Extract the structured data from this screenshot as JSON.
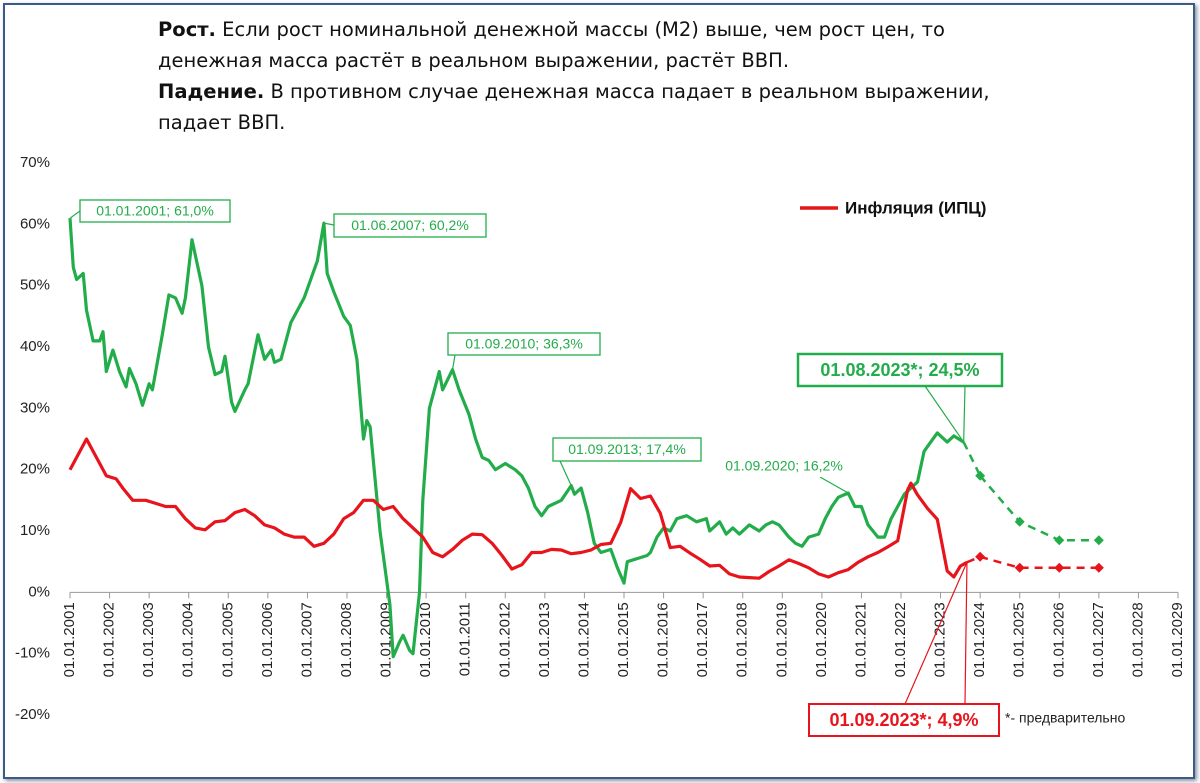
{
  "header": {
    "paragraphs": [
      {
        "bold": "Рост.",
        "lines": [
          "Если рост номинальной денежной массы (М2) выше, чем рост цен,  то",
          "денежная масса растёт в реальном выражении, растёт ВВП."
        ]
      },
      {
        "bold": "Падение.",
        "lines": [
          "В противном случае денежная масса падает в реальном выражении,",
          "падает ВВП."
        ]
      }
    ]
  },
  "chart_data": {
    "type": "line",
    "xlim": [
      "2001-01",
      "2029-01"
    ],
    "xticks": [
      {
        "value": "2001-01",
        "label": "01.01.2001"
      },
      {
        "value": "2002-01",
        "label": "01.01.2002"
      },
      {
        "value": "2003-01",
        "label": "01.01.2003"
      },
      {
        "value": "2004-01",
        "label": "01.01.2004"
      },
      {
        "value": "2005-01",
        "label": "01.01.2005"
      },
      {
        "value": "2006-01",
        "label": "01.01.2006"
      },
      {
        "value": "2007-01",
        "label": "01.01.2007"
      },
      {
        "value": "2008-01",
        "label": "01.01.2008"
      },
      {
        "value": "2009-01",
        "label": "01.01.2009"
      },
      {
        "value": "2010-01",
        "label": "01.01.2010"
      },
      {
        "value": "2011-01",
        "label": "01.01.2011"
      },
      {
        "value": "2012-01",
        "label": "01.01.2012"
      },
      {
        "value": "2013-01",
        "label": "01.01.2013"
      },
      {
        "value": "2014-01",
        "label": "01.01.2014"
      },
      {
        "value": "2015-01",
        "label": "01.01.2015"
      },
      {
        "value": "2016-01",
        "label": "01.01.2016"
      },
      {
        "value": "2017-01",
        "label": "01.01.2017"
      },
      {
        "value": "2018-01",
        "label": "01.01.2018"
      },
      {
        "value": "2019-01",
        "label": "01.01.2019"
      },
      {
        "value": "2020-01",
        "label": "01.01.2020"
      },
      {
        "value": "2021-01",
        "label": "01.01.2021"
      },
      {
        "value": "2022-01",
        "label": "01.01.2022"
      },
      {
        "value": "2023-01",
        "label": "01.01.2023"
      },
      {
        "value": "2024-01",
        "label": "01.01.2024"
      },
      {
        "value": "2025-01",
        "label": "01.01.2025"
      },
      {
        "value": "2026-01",
        "label": "01.01.2026"
      },
      {
        "value": "2027-01",
        "label": "01.01.2027"
      },
      {
        "value": "2028-01",
        "label": "01.01.2028"
      },
      {
        "value": "2029-01",
        "label": "01.01.2029"
      }
    ],
    "ylim": [
      -20,
      70
    ],
    "yticks": [
      {
        "value": -20,
        "label": "-20%"
      },
      {
        "value": -10,
        "label": "-10%"
      },
      {
        "value": 0,
        "label": "0%"
      },
      {
        "value": 10,
        "label": "10%"
      },
      {
        "value": 20,
        "label": "20%"
      },
      {
        "value": 30,
        "label": "30%"
      },
      {
        "value": 40,
        "label": "40%"
      },
      {
        "value": 50,
        "label": "50%"
      },
      {
        "value": 60,
        "label": "60%"
      },
      {
        "value": 70,
        "label": "70%"
      }
    ],
    "grid": false,
    "legend": "top-right",
    "series": [
      {
        "color": "#22ad4a",
        "x": [
          "2001-01",
          "2001-02",
          "2001-03",
          "2001-05",
          "2001-06",
          "2001-08",
          "2001-10",
          "2001-11",
          "2001-12",
          "2002-02",
          "2002-04",
          "2002-06",
          "2002-07",
          "2002-09",
          "2002-11",
          "2003-01",
          "2003-02",
          "2003-05",
          "2003-07",
          "2003-09",
          "2003-11",
          "2003-12",
          "2004-02",
          "2004-05",
          "2004-07",
          "2004-09",
          "2004-11",
          "2004-12",
          "2005-02",
          "2005-03",
          "2005-06",
          "2005-07",
          "2005-10",
          "2005-12",
          "2006-02",
          "2006-03",
          "2006-05",
          "2006-08",
          "2006-10",
          "2006-12",
          "2007-02",
          "2007-04",
          "2007-06",
          "2007-07",
          "2007-09",
          "2007-12",
          "2008-02",
          "2008-04",
          "2008-06",
          "2008-07",
          "2008-08",
          "2008-11",
          "2009-02",
          "2009-03",
          "2009-05",
          "2009-06",
          "2009-08",
          "2009-09",
          "2009-11",
          "2009-12",
          "2010-02",
          "2010-05",
          "2010-06",
          "2010-09",
          "2010-11",
          "2011-02",
          "2011-04",
          "2011-06",
          "2011-08",
          "2011-10",
          "2012-01",
          "2012-04",
          "2012-06",
          "2012-08",
          "2012-10",
          "2012-12",
          "2013-02",
          "2013-06",
          "2013-09",
          "2013-10",
          "2013-12",
          "2014-02",
          "2014-04",
          "2014-06",
          "2014-09",
          "2014-11",
          "2015-01",
          "2015-02",
          "2015-05",
          "2015-08",
          "2015-09",
          "2015-11",
          "2016-01",
          "2016-03",
          "2016-05",
          "2016-08",
          "2016-11",
          "2017-02",
          "2017-03",
          "2017-06",
          "2017-08",
          "2017-10",
          "2017-12",
          "2018-03",
          "2018-06",
          "2018-08",
          "2018-10",
          "2018-12",
          "2019-03",
          "2019-05",
          "2019-07",
          "2019-09",
          "2019-12",
          "2020-02",
          "2020-04",
          "2020-06",
          "2020-09",
          "2020-11",
          "2021-01",
          "2021-03",
          "2021-06",
          "2021-08",
          "2021-10",
          "2021-12",
          "2022-02",
          "2022-04",
          "2022-06",
          "2022-08",
          "2022-10",
          "2022-12",
          "2023-03",
          "2023-05",
          "2023-08"
        ],
        "values": [
          61,
          53,
          51,
          52,
          46,
          41,
          41,
          42.5,
          36,
          39.5,
          36,
          33.5,
          36.5,
          34,
          30.5,
          34,
          33,
          42,
          48.5,
          48,
          45.5,
          48,
          57.5,
          50,
          40,
          35.5,
          36,
          38.5,
          31,
          29.5,
          33,
          34,
          42,
          38,
          39.5,
          37.5,
          38,
          44,
          46,
          48,
          51,
          54,
          60.2,
          52,
          49,
          45,
          43.5,
          38,
          25,
          28,
          27,
          10,
          -2,
          -10.5,
          -8,
          -7,
          -9.5,
          -10,
          0,
          15,
          30,
          36,
          33,
          36.3,
          33,
          29,
          25,
          22,
          21.5,
          20,
          21,
          20,
          19,
          17,
          14,
          12.5,
          14,
          15,
          17.4,
          16,
          17,
          13,
          8,
          6.5,
          7,
          4,
          1.5,
          5,
          5.5,
          6,
          6.5,
          9,
          10.5,
          10,
          12,
          12.5,
          11.5,
          12,
          10,
          11.5,
          9.5,
          10.5,
          9.5,
          11,
          10,
          11,
          11.5,
          11,
          9,
          8,
          7.5,
          9,
          9.5,
          12,
          14,
          15.5,
          16.2,
          14,
          14,
          11,
          9,
          9,
          12,
          14,
          16,
          17,
          18,
          23,
          24.5,
          26,
          24.5,
          25.5,
          24.5
        ]
      },
      {
        "name": "Инфляция (ИПЦ)",
        "color": "#e8141c",
        "x": [
          "2001-01",
          "2001-06",
          "2001-09",
          "2001-12",
          "2002-03",
          "2002-05",
          "2002-08",
          "2002-12",
          "2003-03",
          "2003-06",
          "2003-09",
          "2003-12",
          "2004-03",
          "2004-06",
          "2004-09",
          "2004-12",
          "2005-03",
          "2005-06",
          "2005-09",
          "2005-12",
          "2006-03",
          "2006-06",
          "2006-09",
          "2006-12",
          "2007-03",
          "2007-06",
          "2007-09",
          "2007-12",
          "2008-03",
          "2008-06",
          "2008-09",
          "2008-12",
          "2009-03",
          "2009-06",
          "2009-09",
          "2009-12",
          "2010-03",
          "2010-06",
          "2010-09",
          "2010-12",
          "2011-03",
          "2011-06",
          "2011-09",
          "2011-12",
          "2012-03",
          "2012-06",
          "2012-09",
          "2012-12",
          "2013-03",
          "2013-06",
          "2013-09",
          "2013-12",
          "2014-03",
          "2014-06",
          "2014-09",
          "2014-12",
          "2015-03",
          "2015-06",
          "2015-09",
          "2015-12",
          "2016-03",
          "2016-06",
          "2016-09",
          "2016-12",
          "2017-03",
          "2017-06",
          "2017-09",
          "2017-12",
          "2018-03",
          "2018-06",
          "2018-09",
          "2018-12",
          "2019-03",
          "2019-06",
          "2019-09",
          "2019-12",
          "2020-03",
          "2020-06",
          "2020-09",
          "2020-12",
          "2021-03",
          "2021-06",
          "2021-09",
          "2021-12",
          "2022-03",
          "2022-04",
          "2022-06",
          "2022-09",
          "2022-12",
          "2023-03",
          "2023-05",
          "2023-07",
          "2023-09"
        ],
        "values": [
          20,
          25,
          22,
          19,
          18.5,
          17,
          15,
          15,
          14.5,
          14,
          14,
          12,
          10.5,
          10.2,
          11.5,
          11.7,
          13,
          13.5,
          12.5,
          11,
          10.5,
          9.5,
          9,
          9,
          7.5,
          8,
          9.5,
          12,
          13,
          15,
          15,
          13.5,
          14,
          12,
          10.5,
          9,
          6.5,
          5.8,
          7,
          8.5,
          9.5,
          9.4,
          8,
          6,
          3.8,
          4.5,
          6.5,
          6.5,
          7,
          6.9,
          6.3,
          6.5,
          6.9,
          7.8,
          8,
          11.4,
          16.9,
          15.3,
          15.7,
          12.9,
          7.3,
          7.5,
          6.4,
          5.4,
          4.3,
          4.4,
          3,
          2.5,
          2.4,
          2.3,
          3.4,
          4.3,
          5.3,
          4.7,
          4,
          3,
          2.5,
          3.2,
          3.7,
          4.9,
          5.8,
          6.5,
          7.4,
          8.4,
          16.7,
          17.8,
          15.9,
          13.7,
          11.9,
          3.5,
          2.5,
          4.3,
          4.9
        ]
      },
      {
        "color": "#22ad4a",
        "dash": true,
        "x": [
          "2024-01",
          "2025-01",
          "2026-01",
          "2027-01"
        ],
        "values": [
          19,
          11.5,
          8.5,
          8.5
        ]
      },
      {
        "color": "#e8141c",
        "dash": true,
        "x": [
          "2024-01",
          "2025-01",
          "2026-01",
          "2027-01"
        ],
        "values": [
          5.8,
          4,
          4,
          4
        ]
      }
    ],
    "annotations": [
      {
        "text": "01.01.2001; 61,0%",
        "x": "2001-01",
        "y": 61,
        "color": "#22ad4a"
      },
      {
        "text": "01.06.2007; 60,2%",
        "x": "2007-06",
        "y": 60.2,
        "color": "#22ad4a"
      },
      {
        "text": "01.09.2010; 36,3%",
        "x": "2010-09",
        "y": 36.3,
        "color": "#22ad4a"
      },
      {
        "text": "01.09.2013; 17,4%",
        "x": "2013-09",
        "y": 17.4,
        "color": "#22ad4a"
      },
      {
        "text": "01.09.2020; 16,2%",
        "x": "2020-09",
        "y": 16.2,
        "color": "#22ad4a"
      },
      {
        "text": "01.08.2023*; 24,5%",
        "x": "2023-08",
        "y": 24.5,
        "color": "#22ad4a"
      },
      {
        "text": "01.09.2023*; 4,9%",
        "x": "2023-09",
        "y": 4.9,
        "color": "#e8141c"
      }
    ],
    "note": "*- предварительно"
  }
}
